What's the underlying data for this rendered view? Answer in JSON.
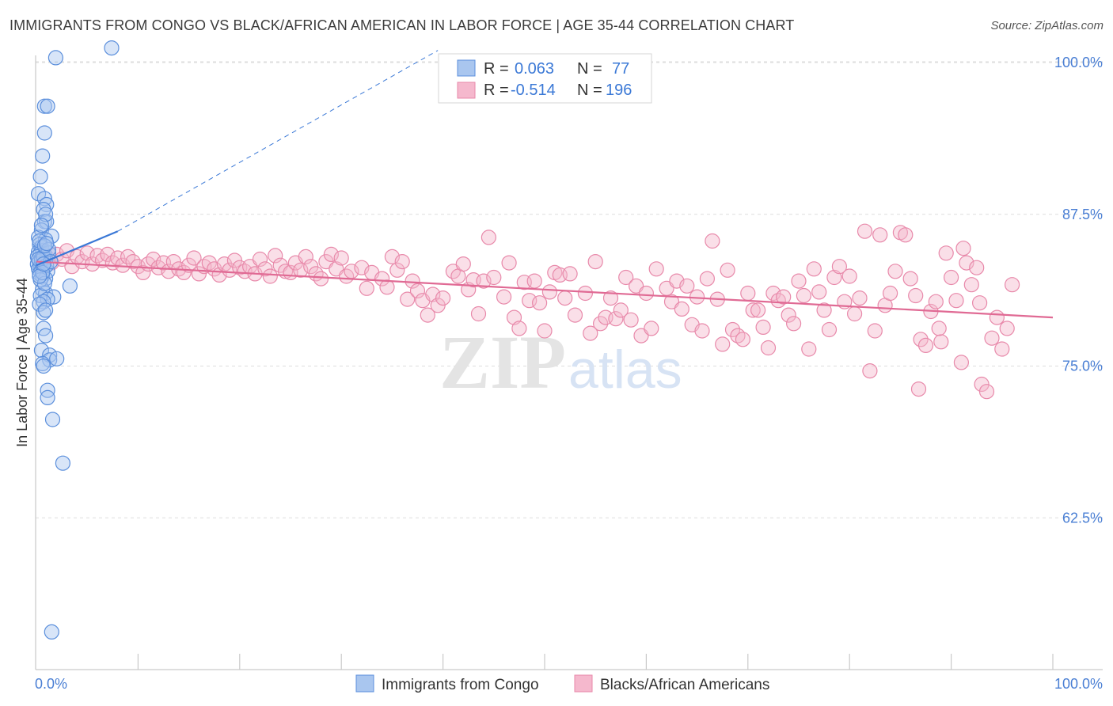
{
  "header": {
    "title": "IMMIGRANTS FROM CONGO VS BLACK/AFRICAN AMERICAN IN LABOR FORCE | AGE 35-44 CORRELATION CHART",
    "source": "Source: ZipAtlas.com"
  },
  "watermark": {
    "zip": "ZIP",
    "atlas": "atlas"
  },
  "legend_box": {
    "rows": [
      {
        "r_label": "R =",
        "r_value": "0.063",
        "n_label": "N =",
        "n_value": "77"
      },
      {
        "r_label": "R =",
        "r_value": "-0.514",
        "n_label": "N =",
        "n_value": "196"
      }
    ]
  },
  "bottom_legend": {
    "items": [
      "Immigrants from Congo",
      "Blacks/African Americans"
    ]
  },
  "chart_data": {
    "type": "scatter",
    "title": "IMMIGRANTS FROM CONGO VS BLACK/AFRICAN AMERICAN IN LABOR FORCE | AGE 35-44 CORRELATION CHART",
    "xlabel": "",
    "ylabel": "In Labor Force | Age 35-44",
    "xlim": [
      0,
      100
    ],
    "ylim": [
      50,
      102
    ],
    "x_tick_labels": {
      "left": "0.0%",
      "right": "100.0%"
    },
    "y_ticks": [
      {
        "value": 100.0,
        "label": "100.0%"
      },
      {
        "value": 87.5,
        "label": "87.5%"
      },
      {
        "value": 75.0,
        "label": "75.0%"
      },
      {
        "value": 62.5,
        "label": "62.5%"
      }
    ],
    "colors": {
      "congo_fill": "#a9c6ef",
      "congo_stroke": "#5b8fdc",
      "congo_line": "#3a78d6",
      "black_fill": "#f5b8cd",
      "black_stroke": "#e889aa",
      "black_line": "#e06a94",
      "grid": "#dddddd",
      "axis_label": "#4a7fd4"
    },
    "series": [
      {
        "name": "Immigrants from Congo",
        "R": 0.063,
        "N": 77,
        "trend": {
          "x": [
            0.0,
            8.0
          ],
          "y": [
            83.3,
            86.1
          ],
          "dashed_extension_to": [
            39.5,
            101.0
          ]
        },
        "points": [
          [
            7.4,
            101.2
          ],
          [
            1.9,
            100.4
          ],
          [
            0.8,
            96.4
          ],
          [
            1.1,
            96.4
          ],
          [
            0.8,
            94.2
          ],
          [
            0.6,
            92.3
          ],
          [
            0.4,
            90.6
          ],
          [
            0.2,
            89.2
          ],
          [
            0.8,
            88.8
          ],
          [
            1.0,
            88.3
          ],
          [
            0.7,
            87.9
          ],
          [
            0.8,
            86.9
          ],
          [
            1.0,
            86.9
          ],
          [
            0.5,
            86.2
          ],
          [
            0.2,
            85.6
          ],
          [
            1.5,
            85.7
          ],
          [
            0.9,
            85.4
          ],
          [
            0.3,
            85.0
          ],
          [
            0.5,
            84.8
          ],
          [
            0.6,
            84.5
          ],
          [
            0.2,
            84.4
          ],
          [
            0.4,
            84.3
          ],
          [
            0.8,
            84.2
          ],
          [
            1.2,
            84.3
          ],
          [
            0.1,
            84.0
          ],
          [
            0.5,
            83.9
          ],
          [
            0.9,
            83.8
          ],
          [
            0.3,
            83.6
          ],
          [
            0.6,
            83.5
          ],
          [
            0.1,
            83.4
          ],
          [
            0.4,
            83.2
          ],
          [
            0.8,
            83.1
          ],
          [
            0.2,
            83.0
          ],
          [
            0.5,
            82.9
          ],
          [
            1.1,
            82.8
          ],
          [
            0.3,
            82.6
          ],
          [
            0.6,
            82.4
          ],
          [
            0.9,
            82.2
          ],
          [
            3.3,
            81.6
          ],
          [
            0.6,
            81.3
          ],
          [
            0.9,
            81.0
          ],
          [
            0.4,
            80.8
          ],
          [
            1.7,
            80.7
          ],
          [
            1.1,
            80.5
          ],
          [
            0.7,
            80.3
          ],
          [
            0.3,
            80.1
          ],
          [
            0.7,
            79.4
          ],
          [
            0.9,
            79.6
          ],
          [
            0.7,
            78.1
          ],
          [
            0.9,
            77.5
          ],
          [
            0.5,
            76.3
          ],
          [
            1.3,
            75.9
          ],
          [
            1.3,
            75.5
          ],
          [
            2.0,
            75.6
          ],
          [
            0.6,
            75.2
          ],
          [
            0.7,
            75.0
          ],
          [
            1.1,
            73.0
          ],
          [
            1.1,
            72.4
          ],
          [
            1.6,
            70.6
          ],
          [
            2.6,
            67.0
          ],
          [
            1.5,
            53.1
          ],
          [
            0.5,
            83.7
          ],
          [
            0.7,
            84.0
          ],
          [
            1.0,
            83.3
          ],
          [
            0.4,
            82.1
          ],
          [
            0.8,
            81.8
          ],
          [
            0.3,
            85.3
          ],
          [
            0.9,
            87.5
          ],
          [
            1.2,
            84.6
          ],
          [
            0.6,
            82.7
          ],
          [
            0.2,
            83.8
          ],
          [
            1.4,
            83.6
          ],
          [
            0.8,
            84.9
          ],
          [
            0.5,
            86.6
          ],
          [
            0.3,
            82.4
          ],
          [
            1.0,
            85.1
          ],
          [
            0.7,
            83.4
          ]
        ]
      },
      {
        "name": "Blacks/African Americans",
        "R": -0.514,
        "N": 196,
        "trend": {
          "x": [
            0.0,
            100.0
          ],
          "y": [
            83.6,
            79.0
          ]
        },
        "points": [
          [
            1.0,
            84.0
          ],
          [
            1.5,
            83.5
          ],
          [
            2.0,
            84.2
          ],
          [
            2.5,
            83.8
          ],
          [
            3.0,
            84.5
          ],
          [
            3.5,
            83.2
          ],
          [
            4.0,
            84.0
          ],
          [
            4.5,
            83.6
          ],
          [
            5.0,
            84.3
          ],
          [
            5.5,
            83.4
          ],
          [
            6.0,
            84.1
          ],
          [
            6.5,
            83.7
          ],
          [
            7.0,
            84.2
          ],
          [
            7.5,
            83.5
          ],
          [
            8.0,
            83.9
          ],
          [
            8.5,
            83.3
          ],
          [
            9.0,
            84.0
          ],
          [
            9.5,
            83.6
          ],
          [
            10.0,
            83.2
          ],
          [
            10.5,
            82.7
          ],
          [
            11.0,
            83.4
          ],
          [
            11.5,
            83.8
          ],
          [
            12.0,
            83.1
          ],
          [
            12.5,
            83.5
          ],
          [
            13.0,
            82.8
          ],
          [
            13.5,
            83.6
          ],
          [
            14.0,
            83.0
          ],
          [
            14.5,
            82.7
          ],
          [
            15.0,
            83.3
          ],
          [
            15.5,
            83.9
          ],
          [
            16.0,
            82.6
          ],
          [
            16.5,
            83.2
          ],
          [
            17.0,
            83.5
          ],
          [
            17.5,
            83.0
          ],
          [
            18.0,
            82.5
          ],
          [
            18.5,
            83.4
          ],
          [
            19.0,
            82.9
          ],
          [
            19.5,
            83.7
          ],
          [
            20.0,
            83.1
          ],
          [
            20.5,
            82.8
          ],
          [
            21.0,
            83.2
          ],
          [
            21.5,
            82.6
          ],
          [
            22.0,
            83.8
          ],
          [
            22.5,
            83.0
          ],
          [
            23.0,
            82.4
          ],
          [
            23.5,
            84.1
          ],
          [
            24.0,
            83.3
          ],
          [
            24.5,
            82.8
          ],
          [
            25.0,
            82.7
          ],
          [
            25.5,
            83.5
          ],
          [
            26.0,
            82.9
          ],
          [
            26.5,
            84.0
          ],
          [
            27.0,
            83.2
          ],
          [
            27.5,
            82.6
          ],
          [
            28.0,
            82.2
          ],
          [
            28.5,
            83.6
          ],
          [
            29.0,
            84.2
          ],
          [
            29.5,
            83.0
          ],
          [
            30.0,
            83.9
          ],
          [
            30.5,
            82.4
          ],
          [
            31.0,
            82.8
          ],
          [
            32.0,
            83.1
          ],
          [
            32.5,
            81.4
          ],
          [
            33.0,
            82.7
          ],
          [
            34.0,
            82.2
          ],
          [
            34.5,
            81.5
          ],
          [
            35.0,
            84.0
          ],
          [
            35.5,
            82.9
          ],
          [
            36.0,
            83.6
          ],
          [
            36.5,
            80.5
          ],
          [
            37.0,
            82.0
          ],
          [
            37.5,
            81.2
          ],
          [
            38.0,
            80.4
          ],
          [
            38.5,
            79.2
          ],
          [
            39.0,
            80.9
          ],
          [
            39.5,
            80.0
          ],
          [
            40.0,
            80.6
          ],
          [
            41.0,
            82.8
          ],
          [
            41.5,
            82.4
          ],
          [
            42.0,
            83.4
          ],
          [
            42.5,
            81.3
          ],
          [
            43.0,
            82.1
          ],
          [
            43.5,
            79.3
          ],
          [
            44.0,
            82.0
          ],
          [
            44.5,
            85.6
          ],
          [
            45.0,
            82.3
          ],
          [
            46.0,
            80.7
          ],
          [
            46.5,
            83.5
          ],
          [
            47.0,
            79.0
          ],
          [
            47.5,
            78.1
          ],
          [
            48.0,
            81.9
          ],
          [
            48.5,
            80.4
          ],
          [
            49.0,
            82.0
          ],
          [
            49.5,
            80.2
          ],
          [
            50.0,
            77.9
          ],
          [
            50.5,
            81.1
          ],
          [
            51.0,
            82.7
          ],
          [
            51.5,
            82.5
          ],
          [
            52.0,
            80.6
          ],
          [
            52.5,
            82.6
          ],
          [
            53.0,
            79.2
          ],
          [
            54.0,
            81.0
          ],
          [
            54.5,
            77.7
          ],
          [
            55.0,
            83.6
          ],
          [
            55.5,
            78.5
          ],
          [
            56.0,
            79.0
          ],
          [
            56.5,
            80.6
          ],
          [
            57.0,
            78.9
          ],
          [
            57.5,
            79.6
          ],
          [
            58.0,
            82.3
          ],
          [
            58.5,
            78.8
          ],
          [
            59.0,
            81.6
          ],
          [
            59.5,
            77.5
          ],
          [
            60.0,
            81.0
          ],
          [
            60.5,
            78.1
          ],
          [
            61.0,
            83.0
          ],
          [
            62.0,
            81.4
          ],
          [
            62.5,
            80.3
          ],
          [
            63.0,
            82.0
          ],
          [
            63.5,
            79.7
          ],
          [
            64.0,
            81.6
          ],
          [
            64.5,
            78.4
          ],
          [
            65.0,
            80.7
          ],
          [
            65.5,
            77.9
          ],
          [
            66.0,
            82.2
          ],
          [
            66.5,
            85.3
          ],
          [
            67.0,
            80.5
          ],
          [
            67.5,
            76.8
          ],
          [
            68.0,
            82.9
          ],
          [
            68.5,
            78.0
          ],
          [
            69.0,
            77.5
          ],
          [
            69.5,
            77.2
          ],
          [
            70.0,
            81.0
          ],
          [
            70.5,
            79.6
          ],
          [
            71.0,
            79.6
          ],
          [
            71.5,
            78.2
          ],
          [
            72.0,
            76.5
          ],
          [
            72.5,
            81.0
          ],
          [
            73.0,
            80.4
          ],
          [
            73.5,
            80.7
          ],
          [
            74.0,
            79.2
          ],
          [
            74.5,
            78.5
          ],
          [
            75.0,
            82.0
          ],
          [
            75.5,
            80.8
          ],
          [
            76.0,
            76.4
          ],
          [
            76.5,
            83.0
          ],
          [
            77.0,
            81.1
          ],
          [
            77.5,
            79.6
          ],
          [
            78.0,
            78.0
          ],
          [
            78.5,
            82.3
          ],
          [
            79.0,
            83.2
          ],
          [
            79.5,
            80.3
          ],
          [
            80.0,
            82.4
          ],
          [
            80.5,
            79.3
          ],
          [
            81.0,
            80.6
          ],
          [
            81.5,
            86.1
          ],
          [
            82.0,
            74.6
          ],
          [
            82.5,
            77.9
          ],
          [
            83.0,
            85.8
          ],
          [
            83.5,
            80.0
          ],
          [
            84.0,
            81.0
          ],
          [
            84.5,
            82.8
          ],
          [
            85.0,
            86.0
          ],
          [
            85.5,
            85.8
          ],
          [
            86.0,
            82.2
          ],
          [
            86.5,
            80.8
          ],
          [
            87.0,
            77.2
          ],
          [
            87.5,
            76.7
          ],
          [
            88.0,
            79.5
          ],
          [
            88.5,
            80.3
          ],
          [
            89.0,
            77.0
          ],
          [
            89.5,
            84.3
          ],
          [
            90.0,
            82.3
          ],
          [
            90.5,
            80.4
          ],
          [
            91.0,
            75.3
          ],
          [
            91.5,
            83.5
          ],
          [
            92.0,
            81.7
          ],
          [
            92.5,
            83.1
          ],
          [
            93.0,
            73.5
          ],
          [
            93.5,
            72.9
          ],
          [
            94.0,
            77.3
          ],
          [
            95.0,
            76.4
          ],
          [
            95.5,
            78.1
          ],
          [
            96.0,
            81.7
          ],
          [
            94.5,
            79.0
          ],
          [
            92.8,
            80.2
          ],
          [
            91.2,
            84.7
          ],
          [
            88.8,
            78.1
          ],
          [
            86.8,
            73.1
          ]
        ]
      }
    ]
  }
}
